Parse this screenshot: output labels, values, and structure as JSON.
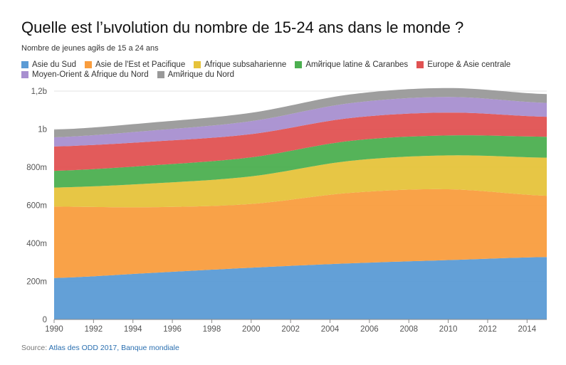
{
  "title": "Quelle est l’ыvolution du nombre de 15-24 ans dans le monde ?",
  "subtitle": "Nombre de jeunes agйs de 15 a 24 ans",
  "source_prefix": "Source:",
  "source_link": "Atlas des ODD 2017, Banque mondiale",
  "chart_data": {
    "type": "area",
    "stacked": true,
    "x": [
      1990,
      1995,
      2000,
      2005,
      2010,
      2015
    ],
    "xticks": [
      "1990",
      "1992",
      "1994",
      "1996",
      "1998",
      "2000",
      "2002",
      "2004",
      "2006",
      "2008",
      "2010",
      "2012",
      "2014"
    ],
    "yticks": [
      "0",
      "200m",
      "400m",
      "600m",
      "800m",
      "1b",
      "1,2b"
    ],
    "ylim": [
      0,
      1200
    ],
    "legend_position": "top",
    "grid": true,
    "series": [
      {
        "name": "Asie du Sud",
        "color": "#5b9bd5",
        "values": [
          218,
          245,
          272,
          295,
          312,
          328
        ]
      },
      {
        "name": "Asie de l'Est et Pacifique",
        "color": "#f99d3e",
        "values": [
          375,
          345,
          335,
          370,
          372,
          322
        ]
      },
      {
        "name": "Afrique subsaharienne",
        "color": "#e6c33b",
        "values": [
          100,
          125,
          145,
          168,
          178,
          200
        ]
      },
      {
        "name": "Amйrique latine & Caranbes",
        "color": "#4caf50",
        "values": [
          88,
          95,
          100,
          105,
          105,
          110
        ]
      },
      {
        "name": "Europe & Asie centrale",
        "color": "#e05252",
        "values": [
          128,
          125,
          122,
          120,
          120,
          105
        ]
      },
      {
        "name": "Moyen-Orient & Afrique du Nord",
        "color": "#a88fd0",
        "values": [
          48,
          58,
          68,
          78,
          82,
          73
        ]
      },
      {
        "name": "Amйrique du Nord",
        "color": "#999999",
        "values": [
          40,
          42,
          44,
          46,
          47,
          46
        ]
      }
    ]
  }
}
